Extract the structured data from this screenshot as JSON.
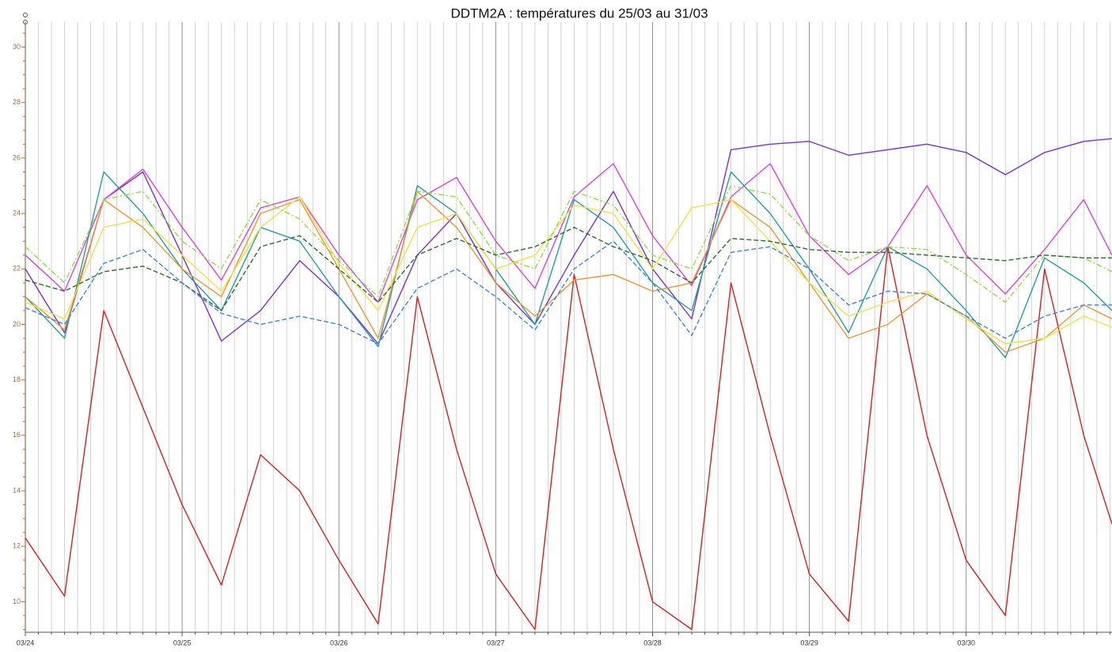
{
  "chart_data": {
    "type": "line",
    "title": "DDTM2A : températures du 25/03 au 31/03",
    "x": [
      0,
      0.25,
      0.5,
      0.75,
      1,
      1.25,
      1.5,
      1.75,
      2,
      2.25,
      2.5,
      2.75,
      3,
      3.25,
      3.5,
      3.75,
      4,
      4.25,
      4.5,
      4.75,
      5,
      5.25,
      5.5,
      5.75,
      6,
      6.25,
      6.5,
      6.75,
      6.93
    ],
    "xlim": [
      0,
      6.93
    ],
    "xticks": [
      {
        "value": 0,
        "label": "03/24"
      },
      {
        "value": 1,
        "label": "03/25"
      },
      {
        "value": 2,
        "label": "03/26"
      },
      {
        "value": 3,
        "label": "03/27"
      },
      {
        "value": 4,
        "label": "03/28"
      },
      {
        "value": 5,
        "label": "03/29"
      },
      {
        "value": 6,
        "label": "03/30"
      }
    ],
    "ylim": [
      8.9,
      30.9
    ],
    "yticks": [
      10,
      12,
      14,
      16,
      18,
      20,
      22,
      24,
      26,
      28,
      30
    ],
    "grid": true,
    "x_minor_grid_per_tick": 12,
    "y_minor_per_tick": 4,
    "series": [
      {
        "color": "#d42020",
        "style": "solid",
        "values": [
          12.3,
          10.2,
          20.5,
          17,
          13.5,
          10.6,
          15.3,
          14,
          11.5,
          9.2,
          21,
          15.5,
          11,
          9,
          21.8,
          15.5,
          10,
          9,
          21.5,
          16,
          11,
          9.3,
          22.8,
          16,
          11.5,
          9.5,
          22,
          16,
          12.8
        ]
      },
      {
        "color": "#7b2fd6",
        "style": "solid",
        "values": [
          22,
          19.7,
          24.5,
          25.5,
          22.5,
          19.4,
          20.5,
          22.3,
          21,
          19.3,
          22.5,
          24,
          21.5,
          20,
          22.5,
          24.8,
          22,
          20.2,
          26.3,
          26.5,
          26.6,
          26.1,
          26.3,
          26.5,
          26.2,
          25.4,
          26.2,
          26.6,
          26.7
        ]
      },
      {
        "color": "#e040e0",
        "style": "solid",
        "values": [
          22.5,
          21.2,
          24.5,
          25.6,
          23.5,
          21.6,
          24.2,
          24.6,
          22.5,
          20.8,
          24.5,
          25.3,
          23,
          21.3,
          24.6,
          25.8,
          23.2,
          21.4,
          24.6,
          25.8,
          23.2,
          21.8,
          22.8,
          25,
          22.5,
          21.1,
          22.7,
          24.5,
          22.5
        ]
      },
      {
        "color": "#1fa0a8",
        "style": "solid",
        "values": [
          21,
          19.5,
          25.5,
          24,
          22,
          20.5,
          23.5,
          23,
          21,
          19.2,
          25,
          24,
          22,
          20,
          24.5,
          23.5,
          21.5,
          20.5,
          25.5,
          24,
          22,
          19.7,
          22.8,
          22,
          20.5,
          18.8,
          22.4,
          21.5,
          20.5
        ]
      },
      {
        "color": "#f0962a",
        "style": "solid",
        "values": [
          21,
          19.8,
          24.5,
          23.5,
          22,
          21,
          24,
          24.5,
          22,
          19.5,
          24.8,
          23.5,
          21.5,
          20.3,
          21.6,
          21.8,
          21.2,
          21.5,
          24.5,
          23.5,
          21.5,
          19.5,
          20,
          21.1,
          20.3,
          19,
          19.5,
          20.7,
          20.2
        ]
      },
      {
        "color": "#f2e43a",
        "style": "solid",
        "values": [
          20.8,
          20.2,
          23.5,
          23.8,
          22.5,
          21.2,
          23.5,
          24.6,
          22.2,
          20.5,
          23.5,
          24,
          22,
          22.5,
          24.3,
          24,
          22,
          24.2,
          24.5,
          23,
          21.5,
          20.3,
          20.8,
          21.2,
          20.2,
          19.3,
          19.5,
          20.3,
          19.9
        ]
      },
      {
        "color": "#8fe03a",
        "style": "dashdot",
        "values": [
          22.8,
          21.5,
          24.5,
          24.8,
          23,
          22,
          24.5,
          23.8,
          22.3,
          21,
          24.8,
          24.6,
          22.5,
          22,
          24.8,
          24.3,
          22.5,
          22,
          25,
          24.7,
          23.2,
          22.3,
          22.8,
          22.7,
          21.8,
          20.8,
          22.5,
          22.4,
          21.9
        ]
      },
      {
        "color": "#2d6b2d",
        "style": "dashed",
        "values": [
          21.6,
          21.2,
          21.9,
          22.1,
          21.5,
          20.5,
          22.8,
          23.2,
          22,
          20.8,
          22.5,
          23.1,
          22.5,
          22.8,
          23.5,
          22.8,
          22.3,
          21.5,
          23.1,
          23,
          22.7,
          22.6,
          22.6,
          22.5,
          22.4,
          22.3,
          22.5,
          22.4,
          22.4
        ]
      },
      {
        "color": "#3a86e0",
        "style": "dashed",
        "values": [
          20.6,
          20,
          22.2,
          22.7,
          21.5,
          20.4,
          20,
          20.3,
          20,
          19.3,
          21.3,
          22,
          21,
          19.8,
          22,
          23,
          21.5,
          19.6,
          22.6,
          22.8,
          22,
          20.7,
          21.2,
          21.1,
          20.3,
          19.5,
          20.3,
          20.7,
          20.7
        ]
      }
    ]
  }
}
